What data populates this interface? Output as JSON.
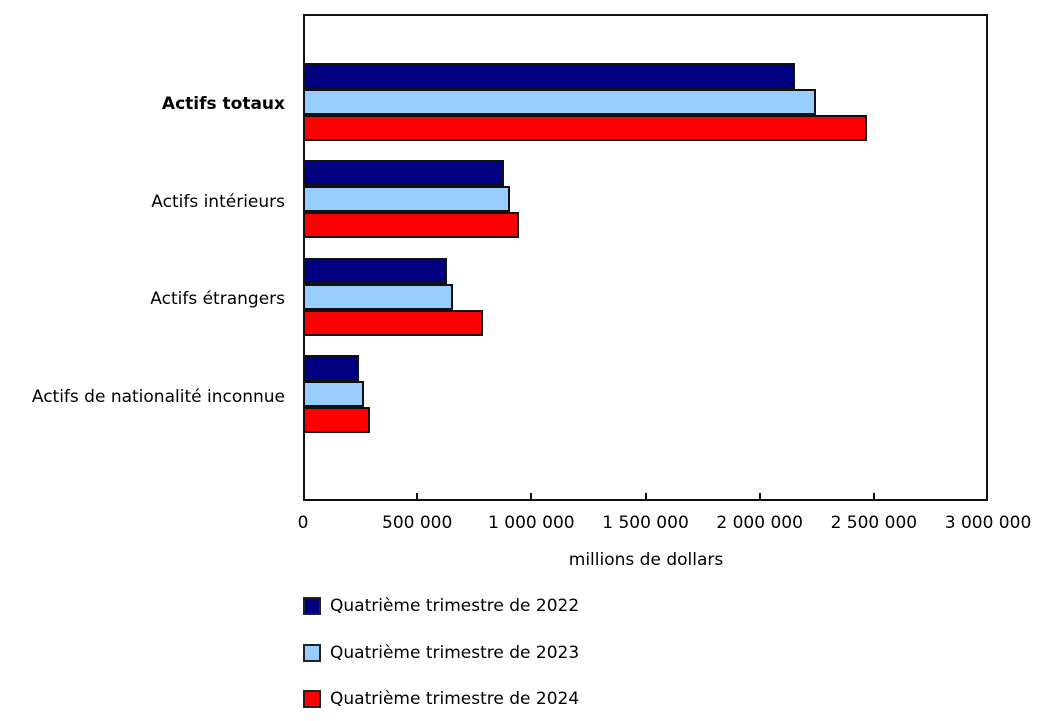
{
  "chart_data": {
    "type": "bar",
    "orientation": "horizontal",
    "title": "",
    "xlabel": "millions de dollars",
    "ylabel": "",
    "xlim": [
      0,
      3000000
    ],
    "grid": false,
    "legend_position": "bottom",
    "categories": [
      "Actifs totaux",
      "Actifs intérieurs",
      "Actifs étrangers",
      "Actifs de nationalité inconnue"
    ],
    "series": [
      {
        "name": "Quatrième trimestre de 2022",
        "color": "#000080",
        "values": [
          2155000,
          880000,
          631000,
          245000
        ]
      },
      {
        "name": "Quatrième trimestre de 2023",
        "color": "#99CCFF",
        "values": [
          2247000,
          907000,
          657000,
          267000
        ]
      },
      {
        "name": "Quatrième trimestre de 2024",
        "color": "#FF0000",
        "values": [
          2470000,
          946000,
          788000,
          293000
        ]
      }
    ],
    "x_ticks": [
      0,
      500000,
      1000000,
      1500000,
      2000000,
      2500000,
      3000000
    ],
    "x_tick_labels": [
      "0",
      "500 000",
      "1 000 000",
      "1 500 000",
      "2 000 000",
      "2 500 000",
      "3 000 000"
    ]
  },
  "labels": {
    "categories": [
      "Actifs totaux",
      "Actifs intérieurs",
      "Actifs étrangers",
      "Actifs de nationalité inconnue"
    ],
    "axis_title": "millions de dollars",
    "ticks": [
      "0",
      "500 000",
      "1 000 000",
      "1 500 000",
      "2 000 000",
      "2 500 000",
      "3 000 000"
    ],
    "legend": [
      "Quatrième trimestre de 2022",
      "Quatrième trimestre de 2023",
      "Quatrième trimestre de 2024"
    ]
  }
}
